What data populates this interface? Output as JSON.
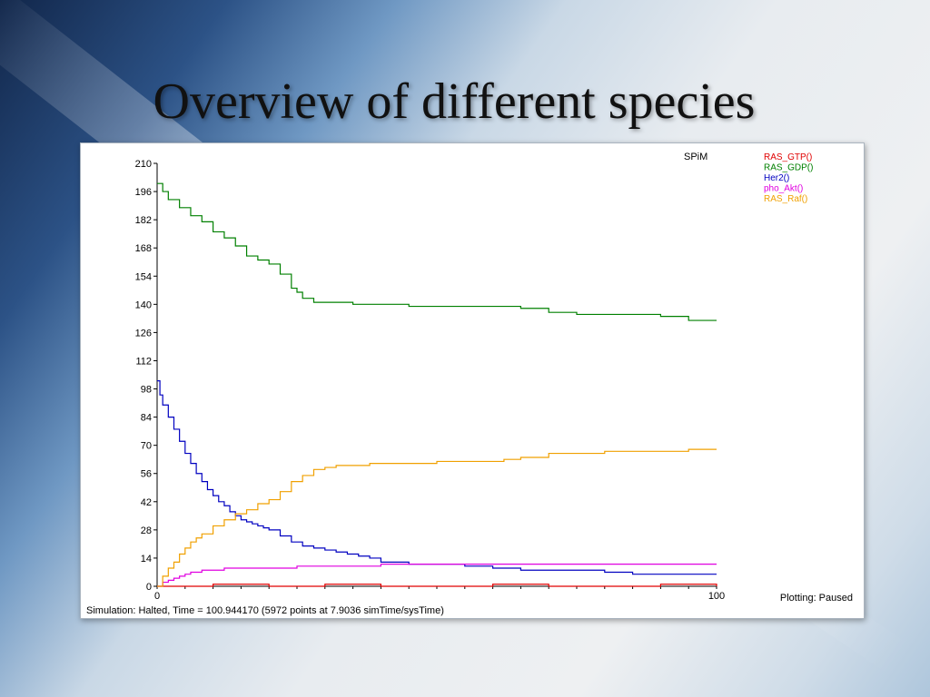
{
  "slide": {
    "title": "Overview of different species"
  },
  "plot_window": {
    "brand": "SPiM",
    "status": "Simulation: Halted, Time = 100.944170 (5972 points at 7.9036 simTime/sysTime)",
    "plotting_state": "Plotting: Paused"
  },
  "chart_data": {
    "type": "line",
    "title": "",
    "xlabel": "",
    "ylabel": "",
    "xlim": [
      0,
      100
    ],
    "ylim": [
      0,
      210
    ],
    "x_ticks": [
      0,
      100
    ],
    "y_ticks": [
      0,
      14,
      28,
      42,
      56,
      70,
      84,
      98,
      112,
      126,
      140,
      154,
      168,
      182,
      196,
      210
    ],
    "grid": false,
    "legend_position": "top-right",
    "series": [
      {
        "name": "RAS_GTP()",
        "color": "#e00000",
        "x": [
          0,
          5,
          10,
          20,
          30,
          40,
          50,
          60,
          70,
          80,
          90,
          100
        ],
        "y": [
          0,
          0,
          1,
          0,
          1,
          0,
          0,
          1,
          0,
          0,
          1,
          0
        ]
      },
      {
        "name": "RAS_GDP()",
        "color": "#008000",
        "x": [
          0,
          1,
          2,
          4,
          6,
          8,
          10,
          12,
          14,
          16,
          18,
          20,
          22,
          24,
          25,
          26,
          28,
          30,
          35,
          40,
          45,
          50,
          55,
          60,
          65,
          70,
          75,
          80,
          85,
          90,
          95,
          100
        ],
        "y": [
          200,
          196,
          192,
          188,
          184,
          181,
          176,
          173,
          169,
          164,
          162,
          160,
          155,
          148,
          146,
          143,
          141,
          141,
          140,
          140,
          139,
          139,
          139,
          139,
          138,
          136,
          135,
          135,
          135,
          134,
          132,
          132
        ]
      },
      {
        "name": "Her2()",
        "color": "#0000c0",
        "x": [
          0,
          0.5,
          1,
          2,
          3,
          4,
          5,
          6,
          7,
          8,
          9,
          10,
          11,
          12,
          13,
          14,
          15,
          16,
          17,
          18,
          19,
          20,
          22,
          24,
          26,
          28,
          30,
          32,
          34,
          36,
          38,
          40,
          45,
          50,
          55,
          60,
          65,
          70,
          75,
          80,
          85,
          90,
          95,
          100
        ],
        "y": [
          102,
          95,
          90,
          84,
          78,
          72,
          66,
          61,
          56,
          52,
          48,
          45,
          42,
          40,
          37,
          35,
          33,
          32,
          31,
          30,
          29,
          28,
          25,
          22,
          20,
          19,
          18,
          17,
          16,
          15,
          14,
          12,
          11,
          11,
          10,
          9,
          8,
          8,
          8,
          7,
          6,
          6,
          6,
          6
        ]
      },
      {
        "name": "pho_Akt()",
        "color": "#e000e0",
        "x": [
          0,
          1,
          2,
          3,
          4,
          5,
          6,
          8,
          10,
          12,
          15,
          20,
          25,
          30,
          35,
          40,
          45,
          50,
          55,
          60,
          65,
          70,
          75,
          80,
          85,
          90,
          95,
          100
        ],
        "y": [
          0,
          2,
          3,
          4,
          5,
          6,
          7,
          8,
          8,
          9,
          9,
          9,
          10,
          10,
          10,
          11,
          11,
          11,
          11,
          11,
          11,
          11,
          11,
          11,
          11,
          11,
          11,
          11
        ]
      },
      {
        "name": "RAS_Raf()",
        "color": "#f0a000",
        "x": [
          0,
          1,
          2,
          3,
          4,
          5,
          6,
          7,
          8,
          10,
          12,
          14,
          16,
          18,
          20,
          22,
          24,
          26,
          28,
          30,
          32,
          34,
          36,
          38,
          40,
          45,
          50,
          55,
          60,
          62,
          65,
          70,
          75,
          80,
          85,
          90,
          95,
          100
        ],
        "y": [
          0,
          5,
          9,
          12,
          16,
          19,
          22,
          24,
          26,
          30,
          33,
          36,
          38,
          41,
          43,
          47,
          52,
          55,
          58,
          59,
          60,
          60,
          60,
          61,
          61,
          61,
          62,
          62,
          62,
          63,
          64,
          66,
          66,
          67,
          67,
          67,
          68,
          68
        ]
      }
    ]
  }
}
